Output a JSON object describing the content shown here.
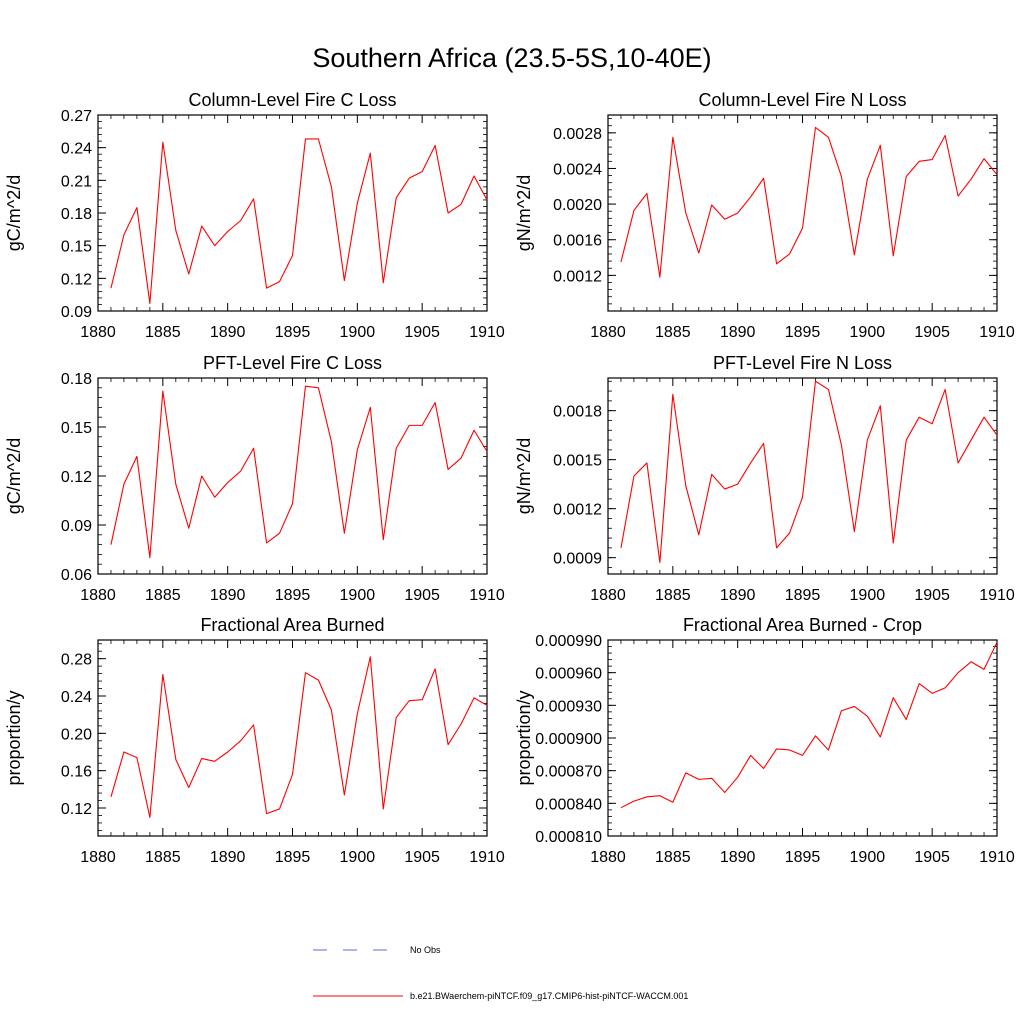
{
  "figure": {
    "title": "Southern Africa (23.5-5S,10-40E)"
  },
  "legend": {
    "items": [
      {
        "label": "No Obs",
        "color": "#5b6bd6",
        "dash": "dashed"
      },
      {
        "label": "b.e21.BWaerchem-piNTCF.f09_g17.CMIP6-hist-piNTCF-WACCM.001",
        "color": "#ff0000",
        "dash": "solid"
      }
    ]
  },
  "colors": {
    "series": "#ff0000",
    "axis": "#000000"
  },
  "chart_data": [
    {
      "type": "line",
      "title": "Column-Level Fire C Loss",
      "xlabel": "",
      "ylabel": "gC/m^2/d",
      "xlim": [
        1880,
        1910
      ],
      "ylim": [
        0.09,
        0.27
      ],
      "xticks": [
        1880,
        1885,
        1890,
        1895,
        1900,
        1905,
        1910
      ],
      "yticks": [
        0.09,
        0.12,
        0.15,
        0.18,
        0.21,
        0.24,
        0.27
      ],
      "ytick_labels": [
        "0.09",
        "0.12",
        "0.15",
        "0.18",
        "0.21",
        "0.24",
        "0.27"
      ],
      "x": [
        1881,
        1882,
        1883,
        1884,
        1885,
        1886,
        1887,
        1888,
        1889,
        1890,
        1891,
        1892,
        1893,
        1894,
        1895,
        1896,
        1897,
        1898,
        1899,
        1900,
        1901,
        1902,
        1903,
        1904,
        1905,
        1906,
        1907,
        1908,
        1909,
        1910
      ],
      "series": [
        {
          "values": [
            0.111,
            0.16,
            0.185,
            0.097,
            0.245,
            0.164,
            0.124,
            0.168,
            0.15,
            0.163,
            0.173,
            0.193,
            0.111,
            0.117,
            0.141,
            0.248,
            0.248,
            0.204,
            0.118,
            0.189,
            0.235,
            0.116,
            0.194,
            0.212,
            0.218,
            0.242,
            0.18,
            0.188,
            0.214,
            0.192
          ]
        }
      ]
    },
    {
      "type": "line",
      "title": "Column-Level Fire N Loss",
      "xlabel": "",
      "ylabel": "gN/m^2/d",
      "xlim": [
        1880,
        1910
      ],
      "ylim": [
        0.0008,
        0.003
      ],
      "xticks": [
        1880,
        1885,
        1890,
        1895,
        1900,
        1905,
        1910
      ],
      "yticks": [
        0.0012,
        0.0016,
        0.002,
        0.0024,
        0.0028
      ],
      "ytick_labels": [
        "0.0012",
        "0.0016",
        "0.0020",
        "0.0024",
        "0.0028"
      ],
      "x": [
        1881,
        1882,
        1883,
        1884,
        1885,
        1886,
        1887,
        1888,
        1889,
        1890,
        1891,
        1892,
        1893,
        1894,
        1895,
        1896,
        1897,
        1898,
        1899,
        1900,
        1901,
        1902,
        1903,
        1904,
        1905,
        1906,
        1907,
        1908,
        1909,
        1910
      ],
      "series": [
        {
          "values": [
            0.00135,
            0.00193,
            0.00212,
            0.00118,
            0.00275,
            0.0019,
            0.00145,
            0.00199,
            0.00183,
            0.0019,
            0.00208,
            0.00229,
            0.00133,
            0.00144,
            0.00173,
            0.00286,
            0.00275,
            0.00231,
            0.00143,
            0.00228,
            0.00266,
            0.00142,
            0.00231,
            0.00248,
            0.0025,
            0.00277,
            0.00209,
            0.00228,
            0.00251,
            0.00233
          ]
        }
      ]
    },
    {
      "type": "line",
      "title": "PFT-Level Fire C Loss",
      "xlabel": "",
      "ylabel": "gC/m^2/d",
      "xlim": [
        1880,
        1910
      ],
      "ylim": [
        0.06,
        0.18
      ],
      "xticks": [
        1880,
        1885,
        1890,
        1895,
        1900,
        1905,
        1910
      ],
      "yticks": [
        0.06,
        0.09,
        0.12,
        0.15,
        0.18
      ],
      "ytick_labels": [
        "0.06",
        "0.09",
        "0.12",
        "0.15",
        "0.18"
      ],
      "x": [
        1881,
        1882,
        1883,
        1884,
        1885,
        1886,
        1887,
        1888,
        1889,
        1890,
        1891,
        1892,
        1893,
        1894,
        1895,
        1896,
        1897,
        1898,
        1899,
        1900,
        1901,
        1902,
        1903,
        1904,
        1905,
        1906,
        1907,
        1908,
        1909,
        1910
      ],
      "series": [
        {
          "values": [
            0.078,
            0.115,
            0.132,
            0.07,
            0.172,
            0.115,
            0.088,
            0.12,
            0.107,
            0.116,
            0.123,
            0.137,
            0.079,
            0.085,
            0.103,
            0.175,
            0.174,
            0.141,
            0.085,
            0.136,
            0.162,
            0.081,
            0.137,
            0.151,
            0.151,
            0.165,
            0.124,
            0.131,
            0.148,
            0.135
          ]
        }
      ]
    },
    {
      "type": "line",
      "title": "PFT-Level Fire N Loss",
      "xlabel": "",
      "ylabel": "gN/m^2/d",
      "xlim": [
        1880,
        1910
      ],
      "ylim": [
        0.0008,
        0.002
      ],
      "xticks": [
        1880,
        1885,
        1890,
        1895,
        1900,
        1905,
        1910
      ],
      "yticks": [
        0.0009,
        0.0012,
        0.0015,
        0.0018
      ],
      "ytick_labels": [
        "0.0009",
        "0.0012",
        "0.0015",
        "0.0018"
      ],
      "x": [
        1881,
        1882,
        1883,
        1884,
        1885,
        1886,
        1887,
        1888,
        1889,
        1890,
        1891,
        1892,
        1893,
        1894,
        1895,
        1896,
        1897,
        1898,
        1899,
        1900,
        1901,
        1902,
        1903,
        1904,
        1905,
        1906,
        1907,
        1908,
        1909,
        1910
      ],
      "series": [
        {
          "values": [
            0.00096,
            0.0014,
            0.00148,
            0.00087,
            0.0019,
            0.00134,
            0.00104,
            0.00141,
            0.00132,
            0.00135,
            0.00148,
            0.0016,
            0.00096,
            0.00105,
            0.00127,
            0.00198,
            0.00193,
            0.00159,
            0.00106,
            0.00162,
            0.00183,
            0.00099,
            0.00162,
            0.00176,
            0.00172,
            0.00193,
            0.00148,
            0.00162,
            0.00176,
            0.00165
          ]
        }
      ]
    },
    {
      "type": "line",
      "title": "Fractional Area Burned",
      "xlabel": "",
      "ylabel": "proportion/y",
      "xlim": [
        1880,
        1910
      ],
      "ylim": [
        0.09,
        0.3
      ],
      "xticks": [
        1880,
        1885,
        1890,
        1895,
        1900,
        1905,
        1910
      ],
      "yticks": [
        0.12,
        0.16,
        0.2,
        0.24,
        0.28
      ],
      "ytick_labels": [
        "0.12",
        "0.16",
        "0.20",
        "0.24",
        "0.28"
      ],
      "x": [
        1881,
        1882,
        1883,
        1884,
        1885,
        1886,
        1887,
        1888,
        1889,
        1890,
        1891,
        1892,
        1893,
        1894,
        1895,
        1896,
        1897,
        1898,
        1899,
        1900,
        1901,
        1902,
        1903,
        1904,
        1905,
        1906,
        1907,
        1908,
        1909,
        1910
      ],
      "series": [
        {
          "values": [
            0.132,
            0.18,
            0.174,
            0.11,
            0.263,
            0.172,
            0.142,
            0.173,
            0.17,
            0.18,
            0.192,
            0.209,
            0.114,
            0.119,
            0.156,
            0.265,
            0.257,
            0.225,
            0.134,
            0.221,
            0.282,
            0.119,
            0.217,
            0.235,
            0.236,
            0.269,
            0.188,
            0.21,
            0.238,
            0.23
          ]
        }
      ]
    },
    {
      "type": "line",
      "title": "Fractional Area Burned - Crop",
      "xlabel": "",
      "ylabel": "proportion/y",
      "xlim": [
        1880,
        1910
      ],
      "ylim": [
        0.00081,
        0.00099
      ],
      "xticks": [
        1880,
        1885,
        1890,
        1895,
        1900,
        1905,
        1910
      ],
      "yticks": [
        0.00081,
        0.00084,
        0.00087,
        0.0009,
        0.00093,
        0.00096,
        0.00099
      ],
      "ytick_labels": [
        "0.000810",
        "0.000840",
        "0.000870",
        "0.000900",
        "0.000930",
        "0.000960",
        "0.000990"
      ],
      "x": [
        1881,
        1882,
        1883,
        1884,
        1885,
        1886,
        1887,
        1888,
        1889,
        1890,
        1891,
        1892,
        1893,
        1894,
        1895,
        1896,
        1897,
        1898,
        1899,
        1900,
        1901,
        1902,
        1903,
        1904,
        1905,
        1906,
        1907,
        1908,
        1909,
        1910
      ],
      "series": [
        {
          "values": [
            0.000836,
            0.000842,
            0.000846,
            0.000847,
            0.000841,
            0.000868,
            0.000862,
            0.000863,
            0.00085,
            0.000864,
            0.000884,
            0.000872,
            0.00089,
            0.000889,
            0.000884,
            0.000902,
            0.000889,
            0.000925,
            0.000929,
            0.00092,
            0.000901,
            0.000937,
            0.000917,
            0.00095,
            0.000941,
            0.000946,
            0.00096,
            0.00097,
            0.000963,
            0.000988
          ]
        }
      ]
    }
  ]
}
